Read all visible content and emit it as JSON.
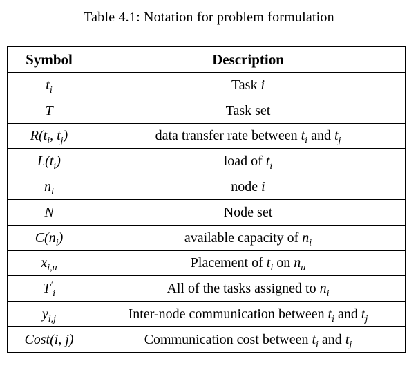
{
  "caption": "Table 4.1: Notation for problem formulation",
  "headers": {
    "symbol": "Symbol",
    "description": "Description"
  },
  "rows": [
    {
      "symbol": "t_i",
      "description": "Task i"
    },
    {
      "symbol": "T",
      "description": "Task set"
    },
    {
      "symbol": "R(t_i, t_j)",
      "description": "data transfer rate between t_i and t_j"
    },
    {
      "symbol": "L(t_i)",
      "description": "load of t_i"
    },
    {
      "symbol": "n_i",
      "description": "node i"
    },
    {
      "symbol": "N",
      "description": "Node set"
    },
    {
      "symbol": "C(n_i)",
      "description": "available capacity of n_i"
    },
    {
      "symbol": "x_{i,u}",
      "description": "Placement of t_i on n_u"
    },
    {
      "symbol": "T'_i",
      "description": "All of the tasks assigned to n_i"
    },
    {
      "symbol": "y_{i,j}",
      "description": "Inter-node communication between t_i and t_j"
    },
    {
      "symbol": "Cost(i, j)",
      "description": "Communication cost between t_i and t_j"
    }
  ]
}
